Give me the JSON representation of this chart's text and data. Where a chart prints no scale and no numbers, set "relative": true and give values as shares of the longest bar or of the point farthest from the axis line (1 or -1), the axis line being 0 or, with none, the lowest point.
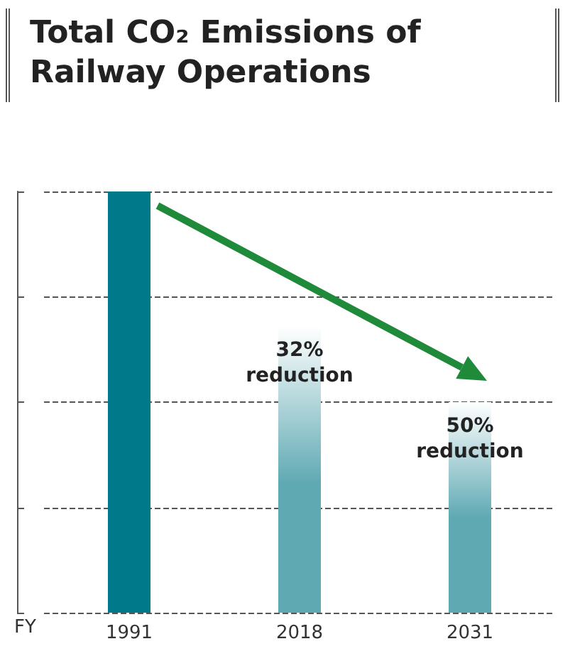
{
  "chart_data": {
    "type": "bar",
    "title": "Total CO₂ Emissions of Railway Operations",
    "xlabel": "FY",
    "relative": true,
    "grid": "y",
    "categories": [
      "1991",
      "2018",
      "2031"
    ],
    "values": [
      1,
      0.68,
      0.5
    ],
    "colors": [
      "#007a8a",
      "#5fa9b3",
      "#5fa9b3"
    ],
    "annotations": [
      {
        "text": "32%\nreduction",
        "x": "2018",
        "y": 0.68
      },
      {
        "text": "50%\nreduction",
        "x": "2031",
        "y": 0.5
      }
    ]
  }
}
